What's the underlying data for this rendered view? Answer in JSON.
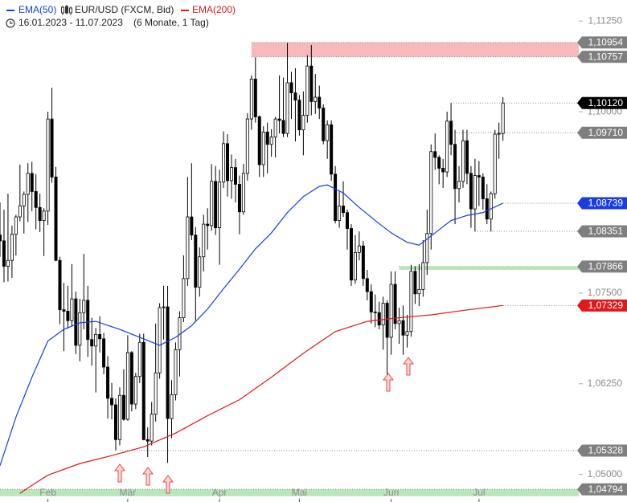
{
  "chart_data": {
    "type": "candlestick",
    "subtitle": "16.01.2023 - 11.07.2023",
    "period": "(6 Monate, 1 Tag)",
    "candles": {
      "name": "EUR/USD (FXCM, Bid)",
      "up_color": "#ffffff",
      "down_color": "#000000",
      "open": [
        1.083,
        1.0822,
        1.0787,
        1.0795,
        1.0831,
        1.0855,
        1.087,
        1.0886,
        1.0915,
        1.089,
        1.0868,
        1.085,
        1.0863,
        1.099,
        1.091,
        1.0795,
        1.0727,
        1.0725,
        1.0712,
        1.0742,
        1.0678,
        1.0723,
        1.074,
        1.0686,
        1.0677,
        1.0693,
        1.0687,
        1.0648,
        1.0605,
        1.0596,
        1.0548,
        1.0609,
        1.0576,
        1.0668,
        1.0597,
        1.0635,
        1.0682,
        1.0548,
        1.0546,
        1.0583,
        1.064,
        1.073,
        1.0731,
        1.0577,
        1.061,
        1.0672,
        1.0716,
        1.077,
        1.0855,
        1.083,
        1.0758,
        1.08,
        1.0845,
        1.0843,
        1.0904,
        1.084,
        1.0903,
        1.0956,
        1.0905,
        1.0923,
        1.09,
        1.0862,
        1.0915,
        1.099,
        1.1045,
        1.0993,
        1.0927,
        1.0972,
        1.0955,
        1.0965,
        1.099,
        1.0988,
        1.097,
        1.104,
        1.1026,
        1.1016,
        1.0975,
        1.0995,
        1.1063,
        1.1014,
        1.102,
        1.1005,
        1.096,
        1.0982,
        1.0914,
        1.085,
        1.087,
        1.0861,
        1.0839,
        1.0768,
        1.0806,
        1.0815,
        1.077,
        1.0752,
        1.0724,
        1.0723,
        1.0706,
        1.0736,
        1.0689,
        1.0762,
        1.0708,
        1.0712,
        1.0692,
        1.0697,
        1.078,
        1.0749,
        1.0755,
        1.0792,
        1.0832,
        1.0945,
        1.0937,
        1.0922,
        1.0917,
        1.0987,
        1.0955,
        1.0894,
        1.0904,
        1.096,
        1.0915,
        1.0866,
        1.0912,
        1.091,
        1.088,
        1.0852,
        1.0887,
        1.0969,
        1.097
      ],
      "high": [
        1.0875,
        1.0865,
        1.0887,
        1.0843,
        1.0858,
        1.0927,
        1.089,
        1.0929,
        1.0931,
        1.0914,
        1.0887,
        1.0867,
        1.1,
        1.1033,
        1.0924,
        1.08,
        1.0764,
        1.076,
        1.079,
        1.0752,
        1.0742,
        1.0804,
        1.076,
        1.0716,
        1.0702,
        1.0718,
        1.0695,
        1.0663,
        1.0626,
        1.0605,
        1.062,
        1.0645,
        1.0692,
        1.067,
        1.064,
        1.0694,
        1.0694,
        1.0565,
        1.06,
        1.0708,
        1.0736,
        1.076,
        1.076,
        1.063,
        1.0682,
        1.0725,
        1.0802,
        1.091,
        1.0929,
        1.0841,
        1.0813,
        1.0858,
        1.0867,
        1.0928,
        1.0925,
        1.092,
        1.0973,
        1.0969,
        1.0941,
        1.0935,
        1.0912,
        1.0928,
        1.0998,
        1.105,
        1.1075,
        1.0995,
        1.098,
        1.0985,
        1.0976,
        1.0993,
        1.105,
        1.1047,
        1.1095,
        1.1055,
        1.106,
        1.1023,
        1.1028,
        1.1078,
        1.1092,
        1.1052,
        1.1036,
        1.101,
        1.0988,
        1.0988,
        1.0925,
        1.089,
        1.0904,
        1.0865,
        1.0845,
        1.083,
        1.0835,
        1.0822,
        1.0782,
        1.0762,
        1.0748,
        1.0738,
        1.0745,
        1.074,
        1.078,
        1.078,
        1.073,
        1.0733,
        1.072,
        1.0789,
        1.0787,
        1.079,
        1.0823,
        1.0865,
        1.0955,
        1.097,
        1.094,
        1.0935,
        1.1,
        1.1012,
        1.0975,
        1.0925,
        1.0975,
        1.0975,
        1.0925,
        1.0935,
        1.0932,
        1.0915,
        1.09,
        1.089,
        1.0975,
        1.0985,
        1.102
      ],
      "low": [
        1.08,
        1.0765,
        1.0766,
        1.0771,
        1.0802,
        1.0849,
        1.0832,
        1.0848,
        1.0863,
        1.0838,
        1.0834,
        1.0801,
        1.0844,
        1.0902,
        1.0794,
        1.0707,
        1.067,
        1.0701,
        1.0705,
        1.0666,
        1.0656,
        1.07,
        1.0662,
        1.065,
        1.0613,
        1.0668,
        1.0638,
        1.0577,
        1.0576,
        1.0533,
        1.054,
        1.0574,
        1.0574,
        1.0587,
        1.059,
        1.0626,
        1.0547,
        1.0524,
        1.054,
        1.0573,
        1.0632,
        1.0686,
        1.0516,
        1.055,
        1.0602,
        1.0635,
        1.071,
        1.076,
        1.0823,
        1.0712,
        1.0745,
        1.078,
        1.081,
        1.0836,
        1.083,
        1.0789,
        1.0895,
        1.0883,
        1.088,
        1.0875,
        1.0831,
        1.0858,
        1.0905,
        1.0975,
        1.0985,
        1.091,
        1.091,
        1.0915,
        1.0938,
        1.0937,
        1.097,
        1.0965,
        1.0965,
        1.099,
        1.0959,
        1.0967,
        1.094,
        1.0985,
        1.0995,
        1.0997,
        1.099,
        1.0955,
        1.0935,
        1.0905,
        1.0846,
        1.084,
        1.0855,
        1.081,
        1.076,
        1.0763,
        1.0795,
        1.076,
        1.074,
        1.0708,
        1.0703,
        1.07,
        1.0672,
        1.0635,
        1.0665,
        1.07,
        1.068,
        1.0665,
        1.0675,
        1.069,
        1.0735,
        1.0732,
        1.0745,
        1.0775,
        1.081,
        1.092,
        1.09,
        1.0895,
        1.091,
        1.094,
        1.0845,
        1.0875,
        1.0895,
        1.09,
        1.084,
        1.0835,
        1.087,
        1.0865,
        1.0845,
        1.0835,
        1.088,
        1.0935,
        1.096
      ],
      "close": [
        1.0822,
        1.0787,
        1.0795,
        1.0831,
        1.0855,
        1.087,
        1.0886,
        1.0915,
        1.089,
        1.0868,
        1.085,
        1.0863,
        1.099,
        1.091,
        1.0795,
        1.0727,
        1.0725,
        1.0712,
        1.0742,
        1.0678,
        1.0723,
        1.074,
        1.0686,
        1.0677,
        1.0693,
        1.0687,
        1.0648,
        1.0605,
        1.0596,
        1.0548,
        1.0609,
        1.0576,
        1.0668,
        1.0597,
        1.0635,
        1.0682,
        1.0548,
        1.0546,
        1.0583,
        1.064,
        1.073,
        1.0731,
        1.0577,
        1.061,
        1.0672,
        1.0716,
        1.077,
        1.0855,
        1.083,
        1.0758,
        1.08,
        1.0845,
        1.0843,
        1.0904,
        1.084,
        1.0903,
        1.0956,
        1.0905,
        1.0923,
        1.09,
        1.0862,
        1.0915,
        1.099,
        1.1045,
        1.0993,
        1.0927,
        1.0972,
        1.0955,
        1.0965,
        1.099,
        1.0988,
        1.097,
        1.104,
        1.1026,
        1.1016,
        1.0975,
        1.0995,
        1.1063,
        1.1014,
        1.102,
        1.1005,
        1.096,
        1.0982,
        1.0914,
        1.085,
        1.087,
        1.0861,
        1.0839,
        1.0768,
        1.0806,
        1.0815,
        1.077,
        1.0752,
        1.0724,
        1.0723,
        1.0706,
        1.0736,
        1.0689,
        1.0762,
        1.0708,
        1.0712,
        1.0692,
        1.0697,
        1.078,
        1.0749,
        1.0755,
        1.0792,
        1.0832,
        1.0945,
        1.0937,
        1.0922,
        1.0917,
        1.0987,
        1.0955,
        1.0894,
        1.0904,
        1.096,
        1.0915,
        1.0866,
        1.0912,
        1.091,
        1.088,
        1.0852,
        1.0887,
        1.0969,
        1.097,
        1.1012
      ]
    },
    "lines": [
      {
        "name": "EMA(50)",
        "color": "#1a3de0",
        "x": [
          0,
          4,
          8,
          12,
          16,
          20,
          24,
          30,
          35,
          40,
          44,
          48,
          52,
          56,
          60,
          64,
          68,
          72,
          76,
          80,
          82,
          86,
          90,
          94,
          98,
          102,
          105,
          109,
          113,
          117,
          121,
          126
        ],
        "values": [
          1.0512,
          1.0579,
          1.0634,
          1.0684,
          1.07,
          1.0709,
          1.0711,
          1.07,
          1.0689,
          1.0678,
          1.0689,
          1.0705,
          1.0728,
          1.0756,
          1.0783,
          1.0811,
          1.0833,
          1.0861,
          1.0883,
          1.0897,
          1.0899,
          1.0888,
          1.0868,
          1.085,
          1.0833,
          1.082,
          1.0816,
          1.0833,
          1.085,
          1.0857,
          1.0861,
          1.08739
        ]
      },
      {
        "name": "EMA(200)",
        "color": "#e0191c",
        "x": [
          5,
          8,
          12,
          20,
          28,
          36,
          44,
          52,
          60,
          68,
          76,
          84,
          92,
          100,
          108,
          116,
          126
        ],
        "values": [
          1.0474,
          1.0485,
          1.0499,
          1.0515,
          1.0526,
          1.0538,
          1.0557,
          1.0581,
          1.0603,
          1.0634,
          1.0667,
          1.0697,
          1.0711,
          1.0716,
          1.072,
          1.0726,
          1.07329
        ]
      }
    ],
    "zones": [
      {
        "from": 1.10757,
        "to": 1.10954,
        "start": 63,
        "color": "#f7b9b9"
      },
      {
        "from": 1.0782,
        "to": 1.07866,
        "start": 100,
        "color": "#b8e8b8"
      },
      {
        "from": 1.047,
        "to": 1.04794,
        "start": 0,
        "color": "#b8e8b8"
      }
    ],
    "levels": [
      {
        "value": 1.10954,
        "label": "1,10954",
        "color": "#7f7f7f",
        "start": 63
      },
      {
        "value": 1.10757,
        "label": "1,10757",
        "color": "#7f7f7f",
        "start": 63
      },
      {
        "value": 1.1012,
        "label": "1,10120",
        "color": "#000000",
        "start": 113
      },
      {
        "value": 1.0971,
        "label": "1,09710",
        "color": "#7f7f7f",
        "start": 112
      },
      {
        "value": 1.08739,
        "label": "1,08739",
        "color": "#1a3de0",
        "start": 126
      },
      {
        "value": 1.08351,
        "label": "1,08351",
        "color": "#7f7f7f",
        "start": 119
      },
      {
        "value": 1.07866,
        "label": "1,07866",
        "color": "#7f7f7f",
        "start": 100
      },
      {
        "value": 1.07329,
        "label": "1,07329",
        "color": "#e0191c",
        "start": 126
      },
      {
        "value": 1.05328,
        "label": "1,05328",
        "color": "#7f7f7f",
        "start": 30
      },
      {
        "value": 1.04794,
        "label": "1,04794",
        "color": "#7f7f7f",
        "start": 0
      }
    ],
    "xlim": [
      0,
      145
    ],
    "xticks": [
      {
        "value": 12,
        "label": "Feb"
      },
      {
        "value": 32,
        "label": "Mär"
      },
      {
        "value": 55,
        "label": "Apr"
      },
      {
        "value": 75,
        "label": "Mai"
      },
      {
        "value": 98,
        "label": "Jun"
      },
      {
        "value": 120,
        "label": "Jul"
      }
    ],
    "ylim": [
      1.0462,
      1.1154
    ],
    "yticks": [
      {
        "value": 1.05,
        "label": "1,05000"
      },
      {
        "value": 1.0625,
        "label": "1,06250"
      },
      {
        "value": 1.075,
        "label": "1,07500"
      },
      {
        "value": 1.1,
        "label": "1,10000"
      },
      {
        "value": 1.1125,
        "label": "1,11250"
      }
    ]
  }
}
